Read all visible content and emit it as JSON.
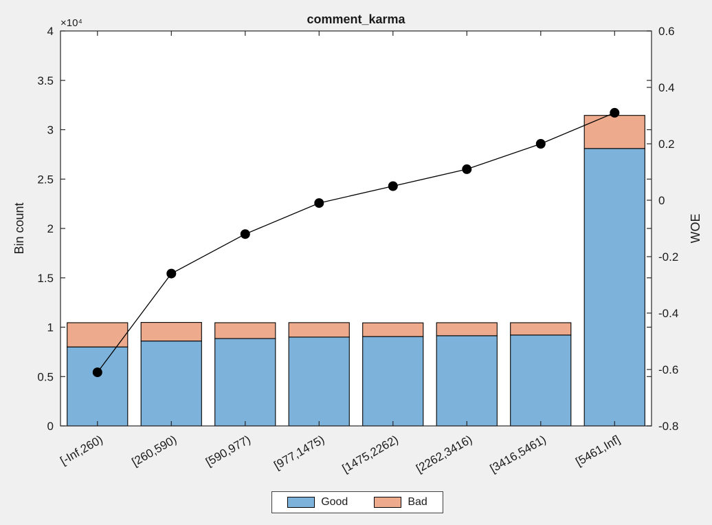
{
  "figure": {
    "background_color": "#f0f0f0",
    "plot_background_color": "#ffffff",
    "axis_color": "#262626"
  },
  "chart_data": {
    "type": "bar",
    "subtype": "stacked-bars-with-line-overlay",
    "title": "comment_karma",
    "grid": false,
    "categories": [
      "[-Inf,260)",
      "[260,590)",
      "[590,977)",
      "[977,1475)",
      "[1475,2262)",
      "[2262,3416)",
      "[3416,5461)",
      "[5461,Inf]"
    ],
    "series": [
      {
        "name": "Good",
        "color": "#7db3db",
        "axis": "left",
        "values": [
          8000,
          8600,
          8850,
          9000,
          9050,
          9130,
          9200,
          28100
        ]
      },
      {
        "name": "Bad",
        "color": "#edaa8c",
        "axis": "left",
        "values": [
          2450,
          1880,
          1600,
          1460,
          1390,
          1320,
          1250,
          3350
        ]
      }
    ],
    "line_series": {
      "name": "WOE",
      "color": "#000000",
      "marker": "filled-circle",
      "axis": "right",
      "values": [
        -0.61,
        -0.26,
        -0.12,
        -0.01,
        0.05,
        0.11,
        0.2,
        0.31
      ]
    },
    "left_axis": {
      "label": "Bin count",
      "multiplier_label": "×10⁴",
      "min": 0,
      "max": 40000,
      "tick_values": [
        0,
        5000,
        10000,
        15000,
        20000,
        25000,
        30000,
        35000,
        40000
      ],
      "tick_labels": [
        "0",
        "0.5",
        "1",
        "1.5",
        "2",
        "2.5",
        "3",
        "3.5",
        "4"
      ]
    },
    "right_axis": {
      "label": "WOE",
      "min": -0.8,
      "max": 0.6,
      "tick_values": [
        -0.8,
        -0.6,
        -0.4,
        -0.2,
        0,
        0.2,
        0.4,
        0.6
      ],
      "tick_labels": [
        "-0.8",
        "-0.6",
        "-0.4",
        "-0.2",
        "0",
        "0.2",
        "0.4",
        "0.6"
      ]
    },
    "legend": {
      "position": "south-outside",
      "entries": [
        "Good",
        "Bad"
      ]
    }
  }
}
